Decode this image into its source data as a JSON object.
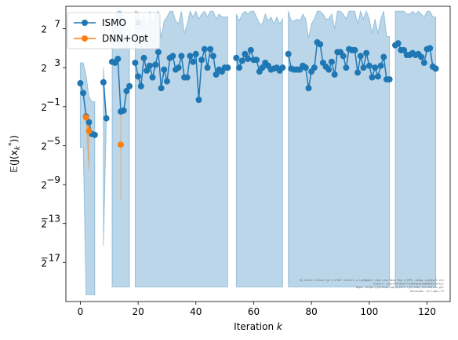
{
  "chart_data": {
    "type": "line",
    "xlabel": "Iteration k",
    "ylabel": "E(J(x_k^*))",
    "xlim": [
      -5,
      128
    ],
    "ylim_log2": [
      -21,
      9.3
    ],
    "y_scale": "log2",
    "xticks": [
      0,
      20,
      40,
      60,
      80,
      100,
      120
    ],
    "yticks_exp": [
      7,
      3,
      -1,
      -5,
      -9,
      -13,
      -17
    ],
    "legend_position": "upper-left",
    "stray_label": "a",
    "watermark": [
      "By Kjetil Olsen Lye @ ETHZ <kjetil.o.lye@gmail.com> and Deep Ray @ EPFL <deep.ray@epfl.ch>",
      "Commit: 1e1ef43f9b3f7f13873b5e1b68b453fe7ecc",
      "Repo: https://github.com/kjetil-lye/isme_validation.git",
      "Hostname: eu-login-27"
    ],
    "series": [
      {
        "name": "ISMO",
        "color": "#1f77b4",
        "x": [
          0,
          1,
          2,
          3,
          4,
          5,
          6,
          7,
          8,
          9,
          10,
          11,
          12,
          13,
          14,
          15,
          16,
          17,
          18,
          19,
          20,
          21,
          22,
          23,
          24,
          25,
          26,
          27,
          28,
          29,
          30,
          31,
          32,
          33,
          34,
          35,
          36,
          37,
          38,
          39,
          40,
          41,
          42,
          43,
          44,
          45,
          46,
          47,
          48,
          49,
          50,
          51,
          52,
          53,
          54,
          55,
          56,
          57,
          58,
          59,
          60,
          61,
          62,
          63,
          64,
          65,
          66,
          67,
          68,
          69,
          70,
          71,
          72,
          73,
          74,
          75,
          76,
          77,
          78,
          79,
          80,
          81,
          82,
          83,
          84,
          85,
          86,
          87,
          88,
          89,
          90,
          91,
          92,
          93,
          94,
          95,
          96,
          97,
          98,
          99,
          100,
          101,
          102,
          103,
          104,
          105,
          106,
          107,
          108,
          109,
          110,
          111,
          112,
          113,
          114,
          115,
          116,
          117,
          118,
          119,
          120,
          121,
          122,
          123
        ],
        "y_exp": [
          1.4,
          0.4,
          -2.0,
          -2.6,
          -3.8,
          -3.9,
          null,
          null,
          1.5,
          -2.2,
          null,
          3.6,
          3.5,
          3.9,
          -1.5,
          -1.4,
          0.6,
          1.1,
          null,
          3.5,
          2.1,
          1.1,
          4.0,
          2.7,
          3.2,
          2.0,
          3.3,
          4.6,
          0.9,
          2.8,
          1.6,
          4.0,
          4.2,
          2.8,
          3.0,
          4.2,
          2.0,
          2.0,
          4.2,
          3.6,
          4.4,
          -0.3,
          3.8,
          4.9,
          3.0,
          4.9,
          4.2,
          2.3,
          2.8,
          2.6,
          3.0,
          3.0,
          null,
          null,
          4.0,
          3.0,
          3.7,
          4.4,
          3.9,
          4.8,
          3.8,
          3.8,
          2.6,
          3.0,
          3.5,
          3.2,
          2.8,
          2.9,
          3.0,
          2.7,
          3.0,
          null,
          4.4,
          2.9,
          2.8,
          2.8,
          2.8,
          3.2,
          3.0,
          0.9,
          2.6,
          3.0,
          5.6,
          5.4,
          3.5,
          3.1,
          2.8,
          3.6,
          2.3,
          4.6,
          4.6,
          4.2,
          3.0,
          4.9,
          4.8,
          4.8,
          2.5,
          4.2,
          3.0,
          4.5,
          3.2,
          2.0,
          3.0,
          2.1,
          3.2,
          4.1,
          1.8,
          1.8,
          null,
          5.3,
          5.5,
          4.8,
          4.8,
          4.3,
          4.3,
          4.5,
          4.3,
          4.4,
          4.1,
          3.5,
          4.9,
          5.0,
          3.1,
          2.9
        ],
        "band_lo_exp": [
          -5.2,
          -5.2,
          -20.3,
          -20.3,
          -20.3,
          -20.3,
          null,
          null,
          -15.3,
          -2.5,
          null,
          -19.5,
          -19.5,
          -19.5,
          -19.5,
          -19.5,
          -19.5,
          -19.5,
          null,
          -19.5,
          -19.5,
          -19.5,
          -19.5,
          -19.5,
          -19.5,
          -19.5,
          -19.5,
          -19.5,
          -19.5,
          -19.5,
          -19.5,
          -19.5,
          -19.5,
          -19.5,
          -19.5,
          -19.5,
          -19.5,
          -19.5,
          -19.5,
          -19.5,
          -19.5,
          -19.5,
          -19.5,
          -19.5,
          -19.5,
          -19.5,
          -19.5,
          -19.5,
          -19.5,
          -19.5,
          -19.5,
          -19.5,
          null,
          null,
          -19.5,
          -19.5,
          -19.5,
          -19.5,
          -19.5,
          -19.5,
          -19.5,
          -19.5,
          -19.5,
          -19.5,
          -19.5,
          -19.5,
          -19.5,
          -19.5,
          -19.5,
          -19.5,
          -19.5,
          null,
          -19.5,
          -19.5,
          -19.5,
          -19.5,
          -19.5,
          -19.5,
          -19.5,
          -19.5,
          -19.5,
          -19.5,
          -19.5,
          -19.5,
          -19.5,
          -19.5,
          -19.5,
          -19.5,
          -19.5,
          -19.5,
          -19.5,
          -19.5,
          -19.5,
          -19.5,
          -19.5,
          -19.5,
          -19.5,
          -19.5,
          -19.5,
          -19.5,
          -19.5,
          -19.5,
          -19.5,
          -19.5,
          -19.5,
          -19.5,
          -19.5,
          -19.5,
          null,
          -19.5,
          -19.5,
          -19.5,
          -19.5,
          -19.5,
          -19.5,
          -19.5,
          -19.5,
          -19.5,
          -19.5,
          -19.5,
          -19.5,
          -19.5,
          -19.5,
          -19.5
        ],
        "band_hi_exp": [
          3.5,
          3.5,
          2.2,
          0.0,
          -0.5,
          -0.5,
          null,
          null,
          3.0,
          -2.0,
          null,
          8.0,
          8.2,
          8.8,
          8.8,
          8.0,
          5.0,
          7.0,
          null,
          8.8,
          8.7,
          7.5,
          8.5,
          7.0,
          8.8,
          7.5,
          8.5,
          8.8,
          6.0,
          7.8,
          8.2,
          8.8,
          8.8,
          7.8,
          7.5,
          8.8,
          6.5,
          7.5,
          8.8,
          8.2,
          8.8,
          8.0,
          8.5,
          8.8,
          8.2,
          8.8,
          8.8,
          8.0,
          8.5,
          8.2,
          8.2,
          8.2,
          null,
          null,
          8.5,
          7.8,
          8.5,
          8.8,
          8.5,
          8.8,
          8.8,
          8.2,
          7.5,
          7.5,
          8.5,
          7.8,
          8.2,
          7.5,
          8.2,
          7.5,
          8.0,
          null,
          8.8,
          7.8,
          7.8,
          8.0,
          7.8,
          8.5,
          8.0,
          6.0,
          7.5,
          8.0,
          8.8,
          8.8,
          8.5,
          8.0,
          8.0,
          8.5,
          7.0,
          8.8,
          8.8,
          8.5,
          8.0,
          8.8,
          8.8,
          8.8,
          7.5,
          8.8,
          8.0,
          8.8,
          8.0,
          6.5,
          8.0,
          6.5,
          8.0,
          8.8,
          6.2,
          6.2,
          null,
          8.8,
          8.8,
          8.8,
          8.8,
          8.5,
          8.5,
          8.8,
          8.5,
          8.8,
          8.5,
          8.2,
          8.8,
          8.8,
          8.2,
          8.2
        ]
      },
      {
        "name": "DNN+Opt",
        "color": "#ff7f0e",
        "x": [
          2,
          3,
          14
        ],
        "y_exp": [
          -2.1,
          -3.5,
          -4.9
        ],
        "band_lo_exp": [
          -2.4,
          -7.5,
          -10.5
        ],
        "band_hi_exp": [
          -1.8,
          -2.5,
          -1.2
        ]
      }
    ]
  }
}
